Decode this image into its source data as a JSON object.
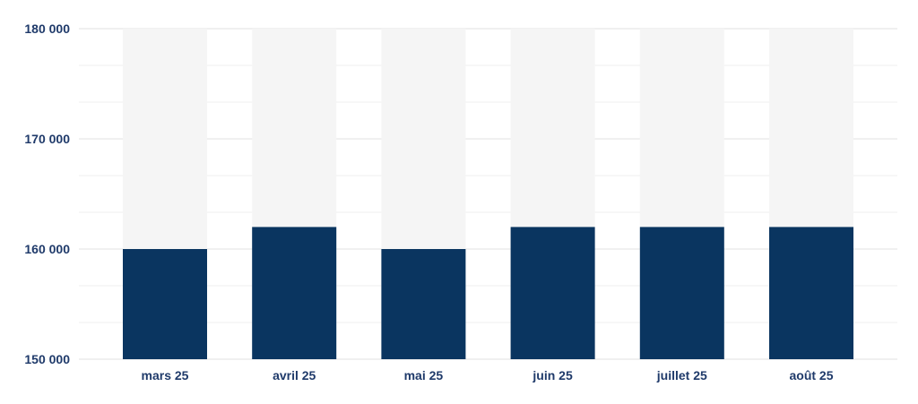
{
  "chart_data": {
    "type": "bar",
    "categories": [
      "mars 25",
      "avril 25",
      "mai 25",
      "juin 25",
      "juillet 25",
      "août 25"
    ],
    "values": [
      160000,
      162000,
      160000,
      162000,
      162000,
      162000
    ],
    "ylim": [
      150000,
      180000
    ],
    "yticks": [
      150000,
      160000,
      170000,
      180000
    ],
    "ytick_labels": [
      "150 000",
      "160 000",
      "170 000",
      "180 000"
    ],
    "grid": true,
    "bar_color": "#0a3560",
    "bar_background_color": "#f5f5f5",
    "label_color": "#1f3a6a"
  }
}
